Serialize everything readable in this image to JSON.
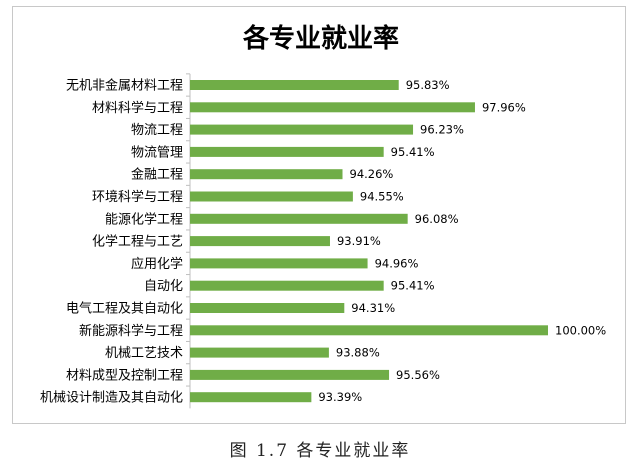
{
  "chart_data": {
    "type": "bar",
    "orientation": "horizontal",
    "title": "各专业就业率",
    "categories": [
      "无机非金属材料工程",
      "材料科学与工程",
      "物流工程",
      "物流管理",
      "金融工程",
      "环境科学与工程",
      "能源化学工程",
      "化学工程与工艺",
      "应用化学",
      "自动化",
      "电气工程及其自动化",
      "新能源科学与工程",
      "机械工艺技术",
      "材料成型及控制工程",
      "机械设计制造及其自动化"
    ],
    "values": [
      95.83,
      97.96,
      96.23,
      95.41,
      94.26,
      94.55,
      96.08,
      93.91,
      94.96,
      95.41,
      94.31,
      100.0,
      93.88,
      95.56,
      93.39
    ],
    "value_labels": [
      "95.83%",
      "97.96%",
      "96.23%",
      "95.41%",
      "94.26%",
      "94.55%",
      "96.08%",
      "93.91%",
      "94.96%",
      "95.41%",
      "94.31%",
      "100.00%",
      "93.88%",
      "95.56%",
      "93.39%"
    ],
    "xlim": [
      90,
      100
    ],
    "bar_color": "#70ad47",
    "axis_color": "#bfbfbf",
    "grid": false,
    "legend": "none"
  },
  "caption": "图 1.7 各专业就业率"
}
